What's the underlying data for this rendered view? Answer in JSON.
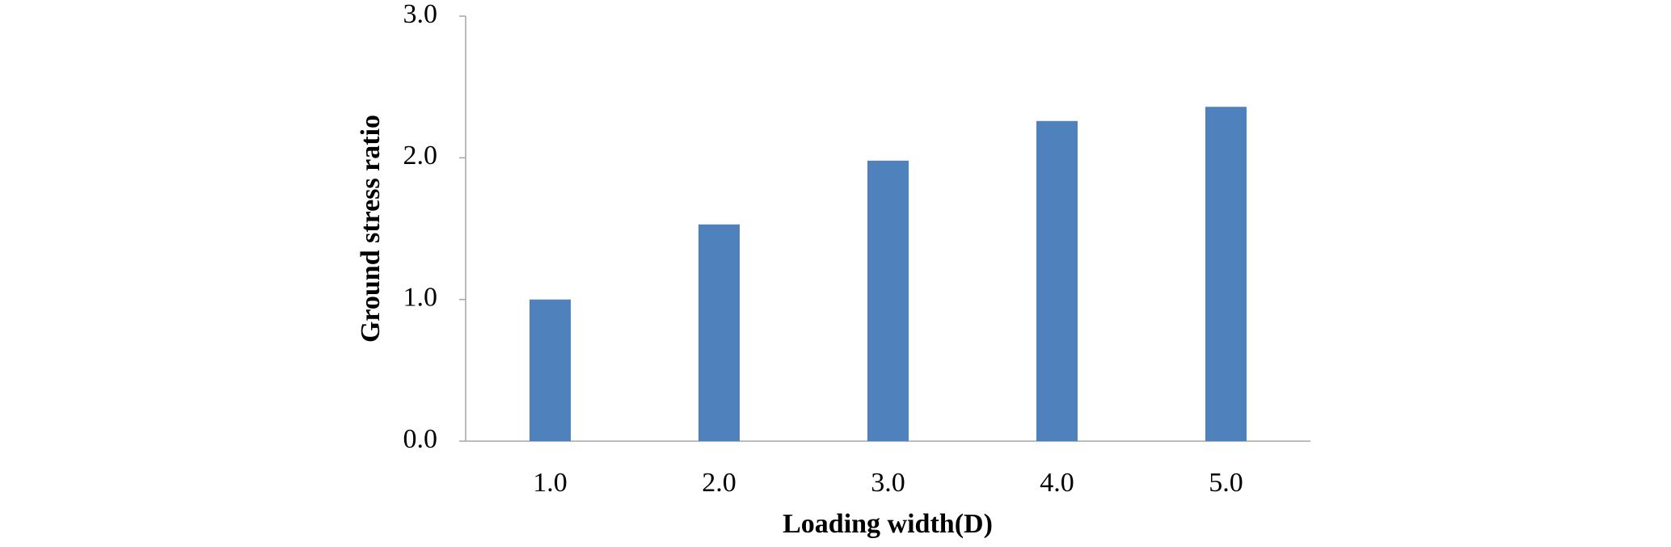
{
  "chart_data": {
    "type": "bar",
    "x_label": "Loading width(D)",
    "y_label": "Ground stress ratio",
    "categories": [
      "1.0",
      "2.0",
      "3.0",
      "4.0",
      "5.0"
    ],
    "values": [
      1.0,
      1.53,
      1.98,
      2.26,
      2.36
    ],
    "color": "#4f81bd",
    "ylim": [
      0,
      3
    ],
    "yticks": [
      {
        "value": 0,
        "label": "0.0"
      },
      {
        "value": 1,
        "label": "1.0"
      },
      {
        "value": 2,
        "label": "2.0"
      },
      {
        "value": 3,
        "label": "3.0"
      }
    ],
    "grid": false
  }
}
